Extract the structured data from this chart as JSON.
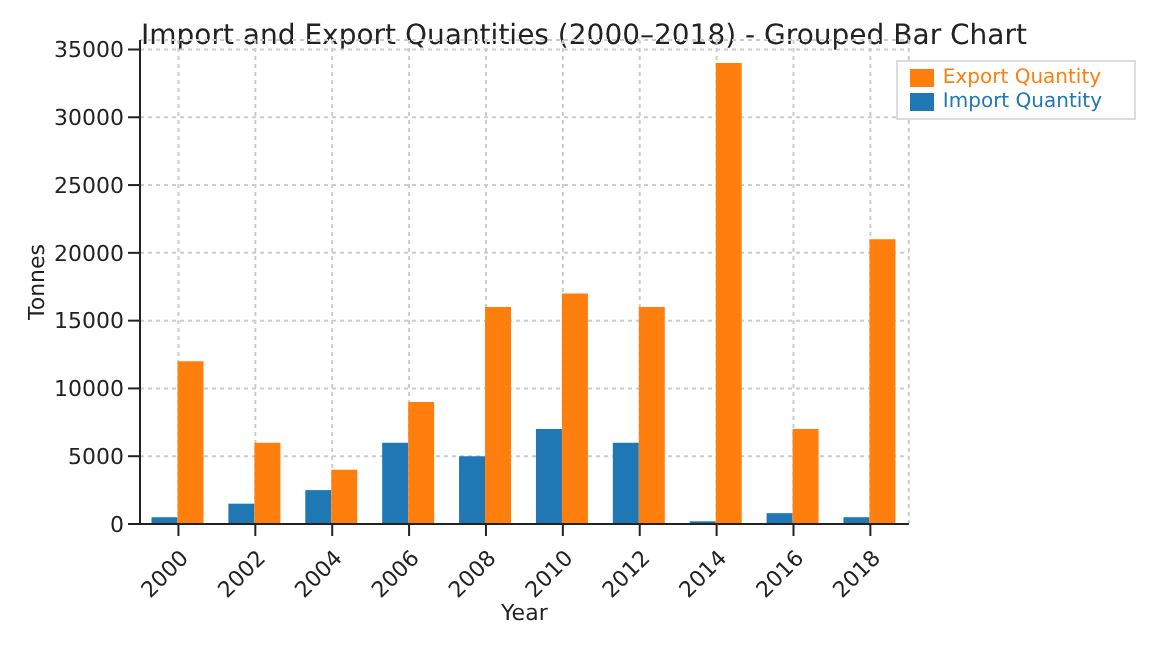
{
  "chart_data": {
    "type": "bar",
    "title": "Import and Export Quantities (2000–2018) - Grouped Bar Chart",
    "xlabel": "Year",
    "ylabel": "Tonnes",
    "categories": [
      "2000",
      "2002",
      "2004",
      "2006",
      "2008",
      "2010",
      "2012",
      "2014",
      "2016",
      "2018"
    ],
    "series": [
      {
        "name": "Import Quantity",
        "color": "#1f77b4",
        "values": [
          500,
          1500,
          2500,
          6000,
          5000,
          7000,
          6000,
          200,
          800,
          500
        ]
      },
      {
        "name": "Export Quantity",
        "color": "#ff7f0e",
        "values": [
          12000,
          6000,
          4000,
          9000,
          16000,
          17000,
          16000,
          34000,
          7000,
          21000
        ]
      }
    ],
    "ylim": [
      0,
      35700
    ],
    "yticks": [
      0,
      5000,
      10000,
      15000,
      20000,
      25000,
      30000,
      35000
    ],
    "grid": true,
    "legend": "top right"
  }
}
